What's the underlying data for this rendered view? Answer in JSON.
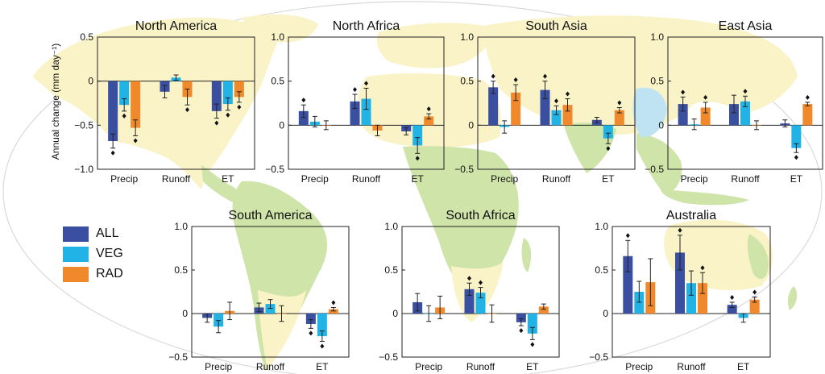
{
  "figure": {
    "ylabel": "Annual change (mm day⁻¹)",
    "colors": {
      "ALL": "#3a4fa0",
      "VEG": "#21b3e6",
      "RAD": "#f0892c",
      "land_green": "#cfe4a8",
      "land_yellow": "#faf3c8",
      "ocean": "#ffffff"
    }
  },
  "legend": [
    {
      "key": "ALL",
      "label": "ALL"
    },
    {
      "key": "VEG",
      "label": "VEG"
    },
    {
      "key": "RAD",
      "label": "RAD"
    }
  ],
  "chart_data": [
    {
      "type": "bar",
      "title": "North America",
      "categories": [
        "Precip",
        "Runoff",
        "ET"
      ],
      "ylim": [
        -1.0,
        0.5
      ],
      "yticks": [
        "0.5",
        "0",
        "−0.5",
        "−1.0"
      ],
      "ytick_values": [
        0.5,
        0,
        -0.5,
        -1.0
      ],
      "series": [
        {
          "name": "ALL",
          "values": [
            -0.68,
            -0.12,
            -0.34
          ],
          "err": [
            0.08,
            0.07,
            0.08
          ],
          "sig": [
            true,
            false,
            true
          ]
        },
        {
          "name": "VEG",
          "values": [
            -0.27,
            0.04,
            -0.26
          ],
          "err": [
            0.07,
            0.03,
            0.07
          ],
          "sig": [
            true,
            false,
            true
          ]
        },
        {
          "name": "RAD",
          "values": [
            -0.53,
            -0.18,
            -0.18
          ],
          "err": [
            0.09,
            0.09,
            0.06
          ],
          "sig": [
            true,
            true,
            true
          ]
        }
      ]
    },
    {
      "type": "bar",
      "title": "North Africa",
      "categories": [
        "Precip",
        "Runoff",
        "ET"
      ],
      "ylim": [
        -0.5,
        1.0
      ],
      "yticks": [
        "1.0",
        "0.5",
        "0",
        "−0.5"
      ],
      "ytick_values": [
        1.0,
        0.5,
        0,
        -0.5
      ],
      "series": [
        {
          "name": "ALL",
          "values": [
            0.16,
            0.27,
            -0.07
          ],
          "err": [
            0.07,
            0.08,
            0.04
          ],
          "sig": [
            true,
            true,
            false
          ]
        },
        {
          "name": "VEG",
          "values": [
            0.04,
            0.3,
            -0.23
          ],
          "err": [
            0.06,
            0.12,
            0.09
          ],
          "sig": [
            false,
            true,
            true
          ]
        },
        {
          "name": "RAD",
          "values": [
            0.0,
            -0.06,
            0.1
          ],
          "err": [
            0.05,
            0.06,
            0.03
          ],
          "sig": [
            false,
            false,
            true
          ]
        }
      ]
    },
    {
      "type": "bar",
      "title": "South Asia",
      "categories": [
        "Precip",
        "Runoff",
        "ET"
      ],
      "ylim": [
        -0.5,
        1.0
      ],
      "yticks": [
        "1.0",
        "0.5",
        "0",
        "−0.5"
      ],
      "ytick_values": [
        1.0,
        0.5,
        0,
        -0.5
      ],
      "series": [
        {
          "name": "ALL",
          "values": [
            0.43,
            0.4,
            0.06
          ],
          "err": [
            0.07,
            0.1,
            0.03
          ],
          "sig": [
            true,
            true,
            false
          ]
        },
        {
          "name": "VEG",
          "values": [
            -0.02,
            0.17,
            -0.15
          ],
          "err": [
            0.07,
            0.05,
            0.06
          ],
          "sig": [
            false,
            true,
            true
          ]
        },
        {
          "name": "RAD",
          "values": [
            0.37,
            0.23,
            0.17
          ],
          "err": [
            0.09,
            0.07,
            0.03
          ],
          "sig": [
            true,
            true,
            true
          ]
        }
      ]
    },
    {
      "type": "bar",
      "title": "East Asia",
      "categories": [
        "Precip",
        "Runoff",
        "ET"
      ],
      "ylim": [
        -0.5,
        1.0
      ],
      "yticks": [
        "1.0",
        "0.5",
        "0",
        "−0.5"
      ],
      "ytick_values": [
        1.0,
        0.5,
        0,
        -0.5
      ],
      "series": [
        {
          "name": "ALL",
          "values": [
            0.24,
            0.24,
            0.02
          ],
          "err": [
            0.08,
            0.1,
            0.04
          ],
          "sig": [
            true,
            false,
            false
          ]
        },
        {
          "name": "VEG",
          "values": [
            0.01,
            0.27,
            -0.26
          ],
          "err": [
            0.06,
            0.06,
            0.05
          ],
          "sig": [
            false,
            true,
            true
          ]
        },
        {
          "name": "RAD",
          "values": [
            0.2,
            0.0,
            0.24
          ],
          "err": [
            0.06,
            0.05,
            0.02
          ],
          "sig": [
            true,
            false,
            true
          ]
        }
      ]
    },
    {
      "type": "bar",
      "title": "South America",
      "categories": [
        "Precip",
        "Runoff",
        "ET"
      ],
      "ylim": [
        -0.5,
        1.0
      ],
      "yticks": [
        "1.0",
        "0.5",
        "0",
        "−0.5"
      ],
      "ytick_values": [
        1.0,
        0.5,
        0,
        -0.5
      ],
      "series": [
        {
          "name": "ALL",
          "values": [
            -0.05,
            0.07,
            -0.12
          ],
          "err": [
            0.05,
            0.05,
            0.05
          ],
          "sig": [
            false,
            false,
            true
          ]
        },
        {
          "name": "VEG",
          "values": [
            -0.15,
            0.11,
            -0.26
          ],
          "err": [
            0.07,
            0.05,
            0.06
          ],
          "sig": [
            false,
            false,
            true
          ]
        },
        {
          "name": "RAD",
          "values": [
            0.03,
            0.0,
            0.05
          ],
          "err": [
            0.1,
            0.09,
            0.02
          ],
          "sig": [
            false,
            false,
            true
          ]
        }
      ]
    },
    {
      "type": "bar",
      "title": "South Africa",
      "categories": [
        "Precip",
        "Runoff",
        "ET"
      ],
      "ylim": [
        -0.5,
        1.0
      ],
      "yticks": [
        "1.0",
        "0.5",
        "0",
        "−0.5"
      ],
      "ytick_values": [
        1.0,
        0.5,
        0,
        -0.5
      ],
      "series": [
        {
          "name": "ALL",
          "values": [
            0.13,
            0.28,
            -0.1
          ],
          "err": [
            0.1,
            0.07,
            0.04
          ],
          "sig": [
            false,
            true,
            true
          ]
        },
        {
          "name": "VEG",
          "values": [
            0.0,
            0.24,
            -0.23
          ],
          "err": [
            0.09,
            0.06,
            0.07
          ],
          "sig": [
            false,
            true,
            true
          ]
        },
        {
          "name": "RAD",
          "values": [
            0.07,
            0.0,
            0.08
          ],
          "err": [
            0.13,
            0.1,
            0.03
          ],
          "sig": [
            false,
            false,
            false
          ]
        }
      ]
    },
    {
      "type": "bar",
      "title": "Australia",
      "categories": [
        "Precip",
        "Runoff",
        "ET"
      ],
      "ylim": [
        -0.5,
        1.0
      ],
      "yticks": [
        "1.0",
        "0.5",
        "0",
        "−0.5"
      ],
      "ytick_values": [
        1.0,
        0.5,
        0,
        -0.5
      ],
      "series": [
        {
          "name": "ALL",
          "values": [
            0.66,
            0.7,
            0.1
          ],
          "err": [
            0.18,
            0.2,
            0.03
          ],
          "sig": [
            true,
            true,
            true
          ]
        },
        {
          "name": "VEG",
          "values": [
            0.25,
            0.35,
            -0.05
          ],
          "err": [
            0.12,
            0.14,
            0.05
          ],
          "sig": [
            false,
            false,
            false
          ]
        },
        {
          "name": "RAD",
          "values": [
            0.36,
            0.35,
            0.16
          ],
          "err": [
            0.27,
            0.12,
            0.03
          ],
          "sig": [
            false,
            true,
            true
          ]
        }
      ]
    }
  ]
}
